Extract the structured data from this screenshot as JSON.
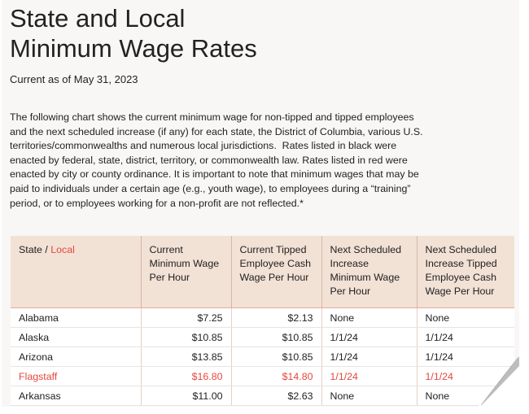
{
  "header": {
    "title_lines": [
      "State and Local",
      "Minimum Wage Rates"
    ],
    "date": "Current as of May 31, 2023"
  },
  "intro_lines": [
    "The following chart shows the current minimum wage for non-tipped and tipped employees",
    "and the next scheduled increase (if any) for each state, the District of Columbia, various U.S.",
    "territories/commonwealths and numerous local jurisdictions.  Rates listed in black were",
    "enacted by federal, state, district, territory, or commonwealth law. Rates listed in red were",
    "enacted by city or county ordinance. It is important to note that minimum wages that may be",
    "paid to individuals under a certain age (e.g., youth wage), to employees during a “training”",
    "period, or to employees working for a non-profit are not reflected.*"
  ],
  "table": {
    "first_header": [
      "State / ",
      "Local"
    ],
    "header": [
      "Current Minimum Wage Per Hour",
      "Current Tipped Employee Cash Wage Per Hour",
      "Next Scheduled Increase Minimum Wage Per Hour",
      "Next Scheduled Increase Tipped Employee Cash Wage Per Hour"
    ],
    "header_color": "#f2e1d5",
    "local_color": "#e5483e",
    "rows": [
      {
        "cells": [
          "Alabama",
          "$7.25",
          "$2.13",
          "None",
          "None"
        ],
        "color": "#222222"
      },
      {
        "cells": [
          "Alaska",
          "$10.85",
          "$10.85",
          "1/1/24",
          "1/1/24"
        ],
        "color": "#222222"
      },
      {
        "cells": [
          "Arizona",
          "$13.85",
          "$10.85",
          "1/1/24",
          "1/1/24"
        ],
        "color": "#222222"
      },
      {
        "cells": [
          "Flagstaff",
          "$16.80",
          "$14.80",
          "1/1/24",
          "1/1/24"
        ],
        "color": "#e5483e"
      },
      {
        "cells": [
          "Arkansas",
          "$11.00",
          "$2.63",
          "None",
          "None"
        ],
        "color": "#222222"
      }
    ]
  }
}
